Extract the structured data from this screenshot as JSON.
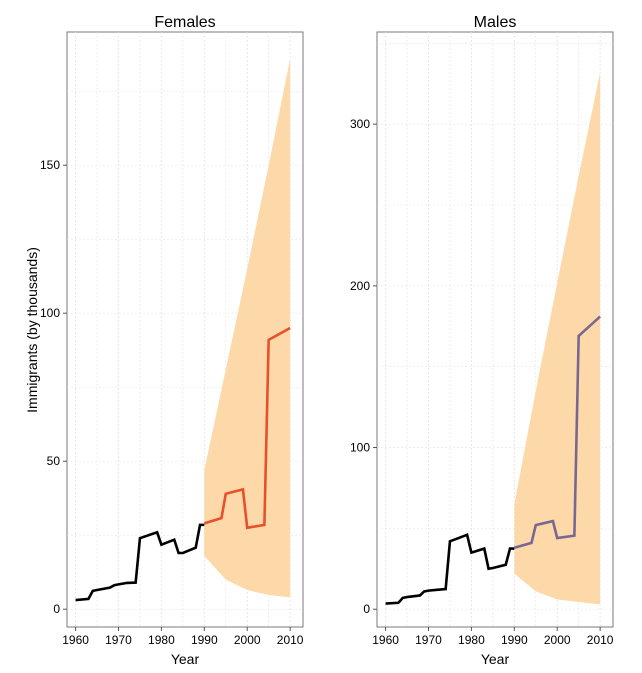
{
  "chart_data": {
    "type": "line",
    "ylabel": "Immigrants (by thousands)",
    "panels": [
      {
        "title": "Females",
        "xlabel": "Year",
        "xlim": [
          1958,
          2013
        ],
        "ylim": [
          -6,
          195
        ],
        "x_ticks": [
          1960,
          1970,
          1980,
          1990,
          2000,
          2010
        ],
        "y_ticks": [
          0,
          50,
          100,
          150
        ],
        "observed": {
          "x": [
            1960,
            1963,
            1964,
            1965,
            1968,
            1969,
            1970,
            1972,
            1974,
            1975,
            1979,
            1980,
            1983,
            1984,
            1985,
            1988,
            1989,
            1990
          ],
          "y": [
            3.1,
            3.5,
            6.2,
            6.5,
            7.3,
            8.1,
            8.4,
            8.9,
            9.0,
            24.0,
            26.0,
            21.8,
            23.5,
            19.0,
            19.0,
            20.8,
            28.5,
            28.5
          ]
        },
        "projection": {
          "x": [
            1990,
            1994,
            1995,
            1999,
            2000,
            2004,
            2005,
            2010
          ],
          "y": [
            29.0,
            30.8,
            39.0,
            40.5,
            27.5,
            28.5,
            91.0,
            95.0
          ],
          "color": "#e8502a"
        },
        "interval": {
          "x": [
            1990,
            1995,
            2000,
            2005,
            2010
          ],
          "lower": [
            18.0,
            10.0,
            6.5,
            4.8,
            4.0
          ],
          "upper": [
            47.0,
            81.0,
            115.0,
            150.0,
            186.0
          ],
          "color": "#fdd9a9"
        }
      },
      {
        "title": "Males",
        "xlabel": "Year",
        "xlim": [
          1958,
          2013
        ],
        "ylim": [
          -11,
          357
        ],
        "x_ticks": [
          1960,
          1970,
          1980,
          1990,
          2000,
          2010
        ],
        "y_ticks": [
          0,
          100,
          200,
          300
        ],
        "observed": {
          "x": [
            1960,
            1963,
            1964,
            1965,
            1968,
            1969,
            1970,
            1972,
            1974,
            1975,
            1979,
            1980,
            1983,
            1984,
            1985,
            1988,
            1989,
            1990
          ],
          "y": [
            3.5,
            4.0,
            7.0,
            7.5,
            8.5,
            11.0,
            11.5,
            12.0,
            12.5,
            42.0,
            46.0,
            35.0,
            37.5,
            25.0,
            25.5,
            27.5,
            37.5,
            37.5
          ]
        },
        "projection": {
          "x": [
            1990,
            1994,
            1995,
            1999,
            2000,
            2004,
            2005,
            2010
          ],
          "y": [
            38.0,
            41.0,
            52.0,
            54.5,
            44.0,
            45.5,
            169.0,
            181.0
          ],
          "color": "#786891"
        },
        "interval": {
          "x": [
            1990,
            1995,
            2000,
            2005,
            2010
          ],
          "lower": [
            22.0,
            11.0,
            6.0,
            4.5,
            3.0
          ],
          "upper": [
            65.0,
            135.0,
            202.0,
            268.0,
            332.0
          ],
          "color": "#fdd9a9"
        }
      }
    ]
  }
}
